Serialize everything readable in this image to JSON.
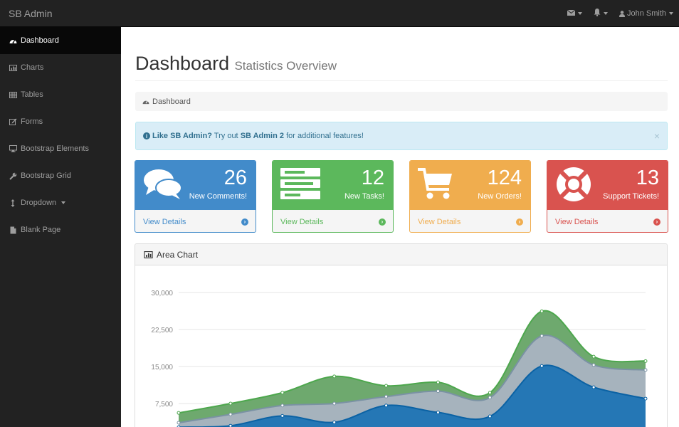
{
  "navbar": {
    "brand": "SB Admin",
    "user_name": "John Smith",
    "icons": [
      "envelope-icon",
      "bell-icon",
      "user-icon"
    ]
  },
  "sidebar": {
    "items": [
      {
        "label": "Dashboard",
        "icon": "dashboard-icon",
        "active": true
      },
      {
        "label": "Charts",
        "icon": "bar-chart-icon"
      },
      {
        "label": "Tables",
        "icon": "table-icon"
      },
      {
        "label": "Forms",
        "icon": "edit-icon"
      },
      {
        "label": "Bootstrap Elements",
        "icon": "desktop-icon"
      },
      {
        "label": "Bootstrap Grid",
        "icon": "wrench-icon"
      },
      {
        "label": "Dropdown",
        "icon": "arrows-v-icon"
      },
      {
        "label": "Blank Page",
        "icon": "file-icon"
      }
    ]
  },
  "page": {
    "title": "Dashboard",
    "subtitle": "Statistics Overview",
    "breadcrumb": "Dashboard"
  },
  "alert": {
    "strong": "Like SB Admin?",
    "text1": " Try out ",
    "link": "SB Admin 2",
    "text2": " for additional features!",
    "close": "×"
  },
  "cards": [
    {
      "value": "26",
      "label": "New Comments!",
      "footer": "View Details",
      "color": "#428bca",
      "icon": "comments-icon"
    },
    {
      "value": "12",
      "label": "New Tasks!",
      "footer": "View Details",
      "color": "#5cb85c",
      "icon": "tasks-icon"
    },
    {
      "value": "124",
      "label": "New Orders!",
      "footer": "View Details",
      "color": "#f0ad4e",
      "icon": "shopping-cart-icon"
    },
    {
      "value": "13",
      "label": "Support Tickets!",
      "footer": "View Details",
      "color": "#d9534f",
      "icon": "support-icon"
    }
  ],
  "chart_panel": {
    "title": "Area Chart"
  },
  "chart_data": {
    "type": "area",
    "stacked": true,
    "ylim": [
      0,
      30000
    ],
    "yticks": [
      "30,000",
      "22,500",
      "15,000",
      "7,500"
    ],
    "ytick_values": [
      30000,
      22500,
      15000,
      7500
    ],
    "grid": true,
    "series": [
      {
        "color": "#2577b5",
        "values": [
          2700,
          3000,
          5000,
          3700,
          7100,
          5700,
          4900,
          15100,
          10800,
          8500
        ]
      },
      {
        "color": "#a6b3bd",
        "values": [
          900,
          2300,
          2100,
          3800,
          1800,
          4300,
          3800,
          6100,
          4500,
          5800
        ]
      },
      {
        "color": "#6ea96e",
        "values": [
          2000,
          2200,
          2600,
          5500,
          2200,
          1800,
          1000,
          5000,
          1700,
          1800
        ]
      }
    ],
    "line_colors": [
      "#0b62a4",
      "#7a92a3",
      "#4da74d"
    ]
  }
}
